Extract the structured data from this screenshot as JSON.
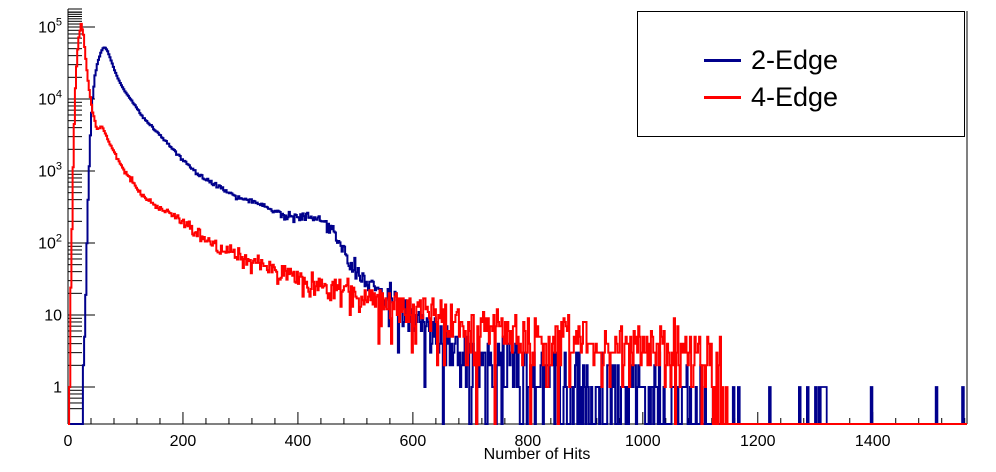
{
  "figure": {
    "background": "#ffffff"
  },
  "axes": {
    "x": {
      "label": "Number of Hits",
      "min": 0,
      "max": 1564,
      "major_ticks": [
        0,
        200,
        400,
        600,
        800,
        1000,
        1200,
        1400
      ],
      "tick_labels": [
        "0",
        "200",
        "400",
        "600",
        "800",
        "1000",
        "1200",
        "1400"
      ],
      "minor_step": 40
    },
    "y": {
      "scale": "log",
      "min": 0.3,
      "max": 147000,
      "decade_labels": [
        "1",
        "10",
        "10^2",
        "10^3",
        "10^4",
        "10^5"
      ],
      "decade_values": [
        1,
        10,
        100,
        1000,
        10000,
        100000
      ]
    }
  },
  "chart_data": {
    "type": "step-histogram",
    "title": "",
    "xlabel": "Number of Hits",
    "ylog": true,
    "legend_position": "top-right",
    "series": [
      {
        "name": "2-Edge",
        "color": "#00008c",
        "peak": {
          "x": 64,
          "y": 53000
        },
        "envelope": [
          [
            26,
            0.35
          ],
          [
            29,
            4
          ],
          [
            32,
            40
          ],
          [
            35,
            350
          ],
          [
            38,
            2200
          ],
          [
            42,
            9000
          ],
          [
            47,
            21000
          ],
          [
            52,
            33000
          ],
          [
            57,
            44000
          ],
          [
            61,
            50500
          ],
          [
            64,
            53000
          ],
          [
            68,
            48000
          ],
          [
            73,
            38000
          ],
          [
            79,
            28000
          ],
          [
            86,
            20000
          ],
          [
            95,
            14500
          ],
          [
            105,
            11000
          ],
          [
            118,
            7800
          ],
          [
            132,
            5400
          ],
          [
            150,
            3800
          ],
          [
            170,
            2600
          ],
          [
            200,
            1400
          ],
          [
            235,
            800
          ],
          [
            270,
            560
          ],
          [
            300,
            430
          ],
          [
            335,
            345
          ],
          [
            365,
            260
          ],
          [
            390,
            235
          ],
          [
            420,
            222
          ],
          [
            445,
            205
          ],
          [
            462,
            150
          ],
          [
            473,
            95
          ],
          [
            490,
            55
          ],
          [
            508,
            33
          ],
          [
            525,
            26
          ],
          [
            545,
            21
          ],
          [
            565,
            16
          ],
          [
            585,
            13
          ],
          [
            605,
            9.5
          ],
          [
            625,
            6.5
          ],
          [
            645,
            4.5
          ],
          [
            665,
            3.2
          ],
          [
            690,
            2.3
          ],
          [
            750,
            1.8
          ],
          [
            820,
            1.3
          ],
          [
            900,
            0.95
          ],
          [
            980,
            0.65
          ],
          [
            1060,
            0.5
          ],
          [
            1132,
            0.4
          ]
        ],
        "sparse_bars": [
          [
            1158,
            1
          ],
          [
            1167,
            1
          ],
          [
            1221,
            1
          ],
          [
            1273,
            1
          ],
          [
            1287,
            1
          ],
          [
            1301,
            1
          ],
          [
            1308,
            1
          ],
          [
            1313,
            1,
            14
          ],
          [
            1398,
            1
          ],
          [
            1511,
            1
          ],
          [
            1557,
            1
          ]
        ]
      },
      {
        "name": "4-Edge",
        "color": "#ff0000",
        "peak": {
          "x": 23,
          "y": 110000
        },
        "envelope": [
          [
            2,
            0.35
          ],
          [
            4,
            6
          ],
          [
            6,
            60
          ],
          [
            8,
            500
          ],
          [
            10,
            2500
          ],
          [
            13,
            14000
          ],
          [
            16,
            40000
          ],
          [
            19,
            72000
          ],
          [
            23,
            110000
          ],
          [
            27,
            78000
          ],
          [
            31,
            36000
          ],
          [
            36,
            15000
          ],
          [
            42,
            7200
          ],
          [
            50,
            3800
          ],
          [
            60,
            4200
          ],
          [
            70,
            2600
          ],
          [
            78,
            2000
          ],
          [
            90,
            1300
          ],
          [
            100,
            950
          ],
          [
            125,
            500
          ],
          [
            160,
            300
          ],
          [
            195,
            215
          ],
          [
            250,
            100
          ],
          [
            300,
            60
          ],
          [
            360,
            42
          ],
          [
            420,
            29
          ],
          [
            480,
            22
          ],
          [
            540,
            16
          ],
          [
            600,
            12
          ],
          [
            660,
            9
          ],
          [
            700,
            7
          ],
          [
            800,
            5
          ],
          [
            880,
            4.2
          ],
          [
            960,
            3.6
          ],
          [
            1040,
            3.2
          ],
          [
            1100,
            2.8
          ],
          [
            1136,
            2.4
          ]
        ],
        "sparse_bars": [
          [
            1139,
            1
          ],
          [
            1146,
            1
          ]
        ]
      }
    ]
  }
}
